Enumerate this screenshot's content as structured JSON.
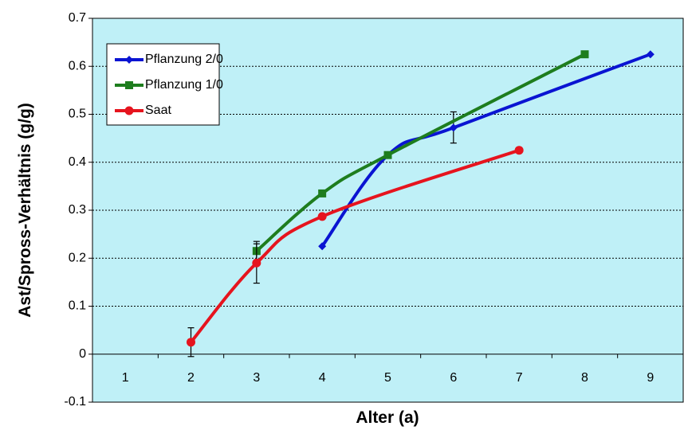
{
  "chart_data": {
    "type": "line",
    "xlabel": "Alter (a)",
    "ylabel": "Ast/Spross-Verhältnis (g/g)",
    "x_ticks": [
      "1",
      "2",
      "3",
      "4",
      "5",
      "6",
      "7",
      "8",
      "9"
    ],
    "y_ticks": [
      "0.7",
      "0.6",
      "0.5",
      "0.4",
      "0.3",
      "0.2",
      "0.1",
      "0",
      "-0.1"
    ],
    "xlim": [
      0.5,
      9.5
    ],
    "ylim": [
      -0.1,
      0.7
    ],
    "grid": "horizontal dashed",
    "legend_position": "top-left",
    "plot_background": "#bff0f7",
    "series": [
      {
        "name": "Pflanzung 2/0",
        "color": "#0a14d2",
        "marker": "diamond",
        "points": [
          [
            4,
            0.225
          ],
          [
            5,
            0.415
          ],
          [
            6,
            0.472
          ],
          [
            9,
            0.625
          ]
        ],
        "error_bars": [
          {
            "x": 6,
            "low": 0.44,
            "high": 0.505
          }
        ]
      },
      {
        "name": "Pflanzung 1/0",
        "color": "#1e7d1e",
        "marker": "square",
        "points": [
          [
            3,
            0.215
          ],
          [
            4,
            0.335
          ],
          [
            5,
            0.415
          ],
          [
            8,
            0.625
          ]
        ],
        "error_bars": [
          {
            "x": 3,
            "low": 0.195,
            "high": 0.235
          }
        ]
      },
      {
        "name": "Saat",
        "color": "#e6141e",
        "marker": "circle",
        "points": [
          [
            2,
            0.025
          ],
          [
            3,
            0.19
          ],
          [
            4,
            0.287
          ],
          [
            7,
            0.425
          ]
        ],
        "error_bars": [
          {
            "x": 2,
            "low": -0.005,
            "high": 0.055
          },
          {
            "x": 3,
            "low": 0.148,
            "high": 0.23
          }
        ]
      }
    ]
  }
}
